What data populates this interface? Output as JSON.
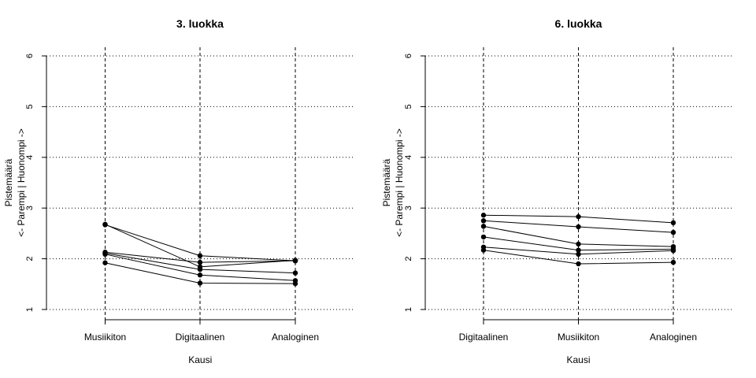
{
  "chart_data": [
    {
      "type": "line",
      "title": "3. luokka",
      "xlabel": "Kausi",
      "ylabel_lines": [
        "Pistemäärä",
        "<- Parempi | Huonompi ->"
      ],
      "categories": [
        "Musiikiton",
        "Digitaalinen",
        "Analoginen"
      ],
      "ylim": [
        1,
        6
      ],
      "yticks": [
        "1",
        "2",
        "3",
        "4",
        "5",
        "6"
      ],
      "grid": "dotted horizontal at y ticks, dashed vertical at categories",
      "series": [
        {
          "values": [
            2.68,
            1.84,
            1.97
          ]
        },
        {
          "values": [
            2.67,
            2.06,
            1.96
          ]
        },
        {
          "values": [
            2.13,
            1.93,
            1.96
          ]
        },
        {
          "values": [
            2.11,
            1.79,
            1.72
          ]
        },
        {
          "values": [
            2.09,
            1.68,
            1.57
          ]
        },
        {
          "values": [
            1.92,
            1.52,
            1.51
          ]
        }
      ]
    },
    {
      "type": "line",
      "title": "6. luokka",
      "xlabel": "Kausi",
      "ylabel_lines": [
        "Pistemäärä",
        "<- Parempi | Huonompi ->"
      ],
      "categories": [
        "Digitaalinen",
        "Musiikiton",
        "Analoginen"
      ],
      "ylim": [
        1,
        6
      ],
      "yticks": [
        "1",
        "2",
        "3",
        "4",
        "5",
        "6"
      ],
      "grid": "dotted horizontal at y ticks, dashed vertical at categories",
      "series": [
        {
          "values": [
            2.86,
            2.83,
            2.71
          ]
        },
        {
          "values": [
            2.75,
            2.63,
            2.52
          ]
        },
        {
          "values": [
            2.64,
            2.29,
            2.24
          ]
        },
        {
          "values": [
            2.43,
            2.17,
            2.19
          ]
        },
        {
          "values": [
            2.23,
            2.09,
            2.16
          ]
        },
        {
          "values": [
            2.17,
            1.9,
            1.93
          ]
        }
      ]
    }
  ]
}
